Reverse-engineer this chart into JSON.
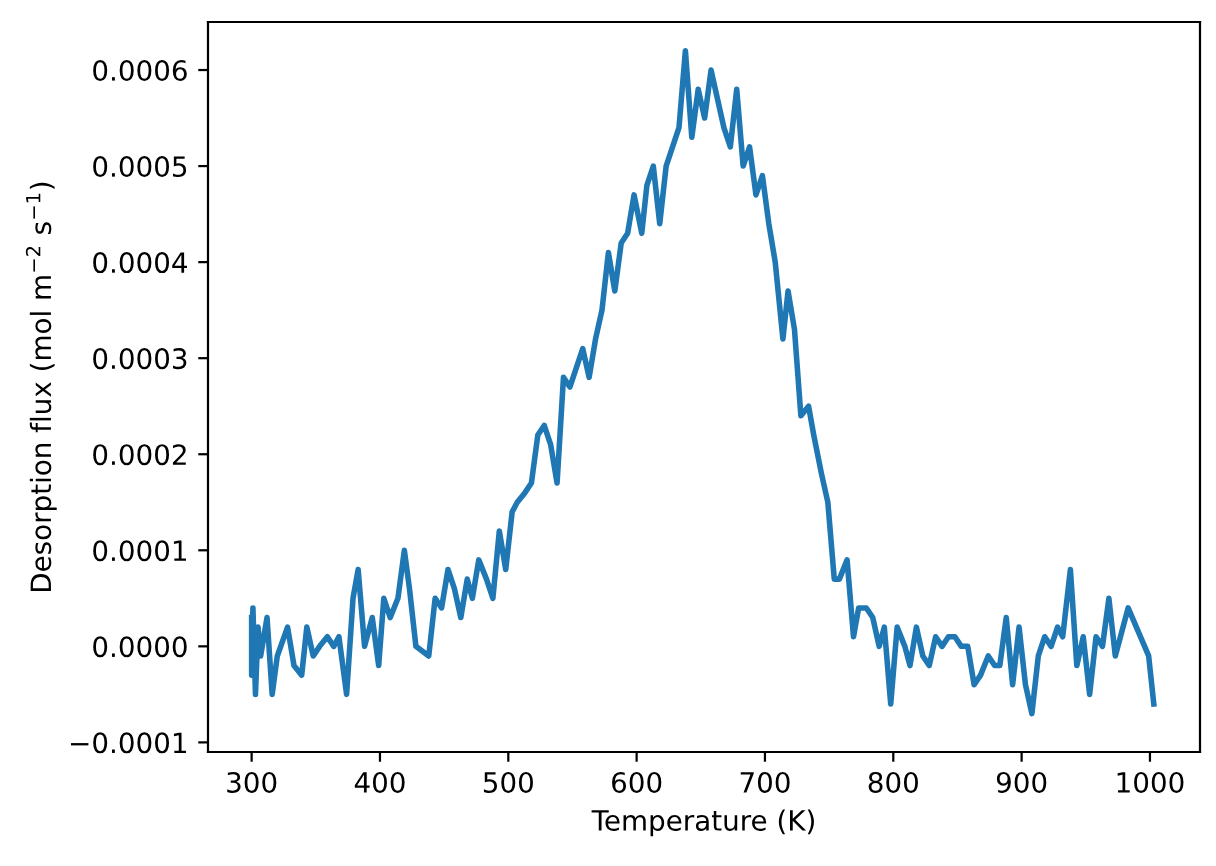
{
  "chart_data": {
    "type": "line",
    "xlabel": "Temperature (K)",
    "ylabel": "Desorption flux (mol m$^{−2}$ s$^{−1}$)",
    "x": [
      300,
      300,
      301,
      303,
      305,
      307,
      312,
      316,
      320,
      328,
      333,
      339,
      343,
      348,
      353,
      359,
      364,
      368,
      374,
      379,
      383,
      388,
      394,
      399,
      403,
      408,
      414,
      419,
      423,
      428,
      438,
      443,
      448,
      453,
      458,
      463,
      468,
      472,
      477,
      483,
      488,
      493,
      498,
      503,
      507,
      513,
      518,
      523,
      528,
      533,
      538,
      543,
      548,
      553,
      558,
      563,
      568,
      573,
      578,
      583,
      588,
      593,
      598,
      604,
      608,
      613,
      618,
      623,
      628,
      633,
      638,
      643,
      648,
      653,
      658,
      663,
      668,
      673,
      678,
      683,
      688,
      693,
      698,
      703,
      708,
      714,
      718,
      723,
      728,
      734,
      738,
      744,
      749,
      754,
      758,
      764,
      769,
      773,
      779,
      784,
      789,
      793,
      798,
      803,
      809,
      813,
      818,
      823,
      828,
      833,
      838,
      843,
      848,
      853,
      858,
      863,
      868,
      874,
      879,
      883,
      888,
      893,
      898,
      903,
      908,
      913,
      918,
      923,
      928,
      932,
      938,
      943,
      948,
      953,
      958,
      963,
      968,
      973,
      983,
      999,
      1003
    ],
    "series": [
      {
        "color": "#1f77b4",
        "values": [
          3e-05,
          -3e-05,
          4e-05,
          -5e-05,
          2e-05,
          -1e-05,
          3e-05,
          -5e-05,
          -1e-05,
          2e-05,
          -2e-05,
          -3e-05,
          2e-05,
          -1e-05,
          0,
          1e-05,
          0,
          1e-05,
          -5e-05,
          5e-05,
          8e-05,
          0,
          3e-05,
          -2e-05,
          5e-05,
          3e-05,
          5e-05,
          0.0001,
          6e-05,
          0,
          -1e-05,
          5e-05,
          4e-05,
          8e-05,
          6e-05,
          3e-05,
          7e-05,
          5e-05,
          9e-05,
          7e-05,
          5e-05,
          0.00012,
          8e-05,
          0.00014,
          0.00015,
          0.00016,
          0.00017,
          0.00022,
          0.00023,
          0.00021,
          0.00017,
          0.00028,
          0.00027,
          0.00029,
          0.00031,
          0.00028,
          0.00032,
          0.00035,
          0.00041,
          0.00037,
          0.00042,
          0.00043,
          0.00047,
          0.00043,
          0.00048,
          0.0005,
          0.00044,
          0.0005,
          0.00052,
          0.00054,
          0.00062,
          0.00053,
          0.00058,
          0.00055,
          0.0006,
          0.00057,
          0.00054,
          0.00052,
          0.00058,
          0.0005,
          0.00052,
          0.00047,
          0.00049,
          0.00044,
          0.0004,
          0.00032,
          0.00037,
          0.00033,
          0.00024,
          0.00025,
          0.00022,
          0.00018,
          0.00015,
          7e-05,
          7e-05,
          9e-05,
          1e-05,
          4e-05,
          4e-05,
          3e-05,
          0,
          2e-05,
          -6e-05,
          2e-05,
          0,
          -2e-05,
          2e-05,
          -1e-05,
          -2e-05,
          1e-05,
          0,
          1e-05,
          1e-05,
          0,
          0,
          -4e-05,
          -3e-05,
          -1e-05,
          -2e-05,
          -2e-05,
          3e-05,
          -4e-05,
          2e-05,
          -4e-05,
          -7e-05,
          -1e-05,
          1e-05,
          0,
          2e-05,
          1e-05,
          8e-05,
          -2e-05,
          1e-05,
          -5e-05,
          1e-05,
          0,
          5e-05,
          -1e-05,
          4e-05,
          -1e-05,
          -6e-05
        ]
      }
    ],
    "xlim": [
      266,
      1039
    ],
    "ylim": [
      -0.00011,
      0.00065
    ],
    "xticks": [
      300,
      400,
      500,
      600,
      700,
      800,
      900,
      1000
    ],
    "yticks": [
      {
        "value": -0.0001,
        "label": "−0.0001"
      },
      {
        "value": 0,
        "label": "0.0000"
      },
      {
        "value": 0.0001,
        "label": "0.0001"
      },
      {
        "value": 0.0002,
        "label": "0.0002"
      },
      {
        "value": 0.0003,
        "label": "0.0003"
      },
      {
        "value": 0.0004,
        "label": "0.0004"
      },
      {
        "value": 0.0005,
        "label": "0.0005"
      },
      {
        "value": 0.0006,
        "label": "0.0006"
      }
    ],
    "grid": false,
    "marker": "none",
    "line_style": "solid"
  }
}
